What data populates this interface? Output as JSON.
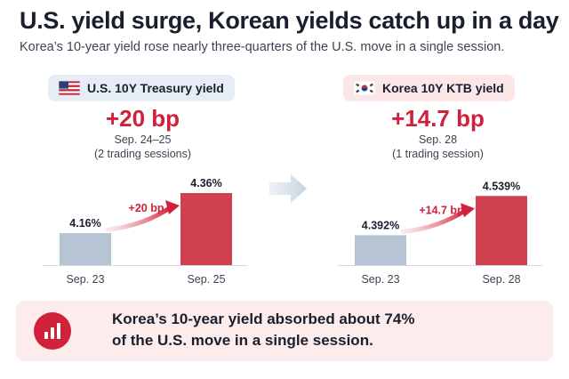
{
  "header": {
    "title": "U.S. yield surge, Korean yields catch up in a day",
    "subtitle": "Korea’s 10-year yield rose nearly three-quarters of the U.S. move in a single session."
  },
  "colors": {
    "accent_red": "#d0213a",
    "bar_before": "#b7c4d3",
    "bar_after": "#d0404f"
  },
  "chart_data": [
    {
      "type": "bar",
      "title": "U.S. 10Y Treasury yield",
      "flag_icon": "us-flag-icon",
      "headline_change": "+20 bp",
      "period": "Sep. 24–25",
      "period_note": "(2 trading sessions)",
      "categories": [
        "Sep. 23",
        "Sep. 25"
      ],
      "values": [
        4.16,
        4.36
      ],
      "value_labels": [
        "4.16%",
        "4.36%"
      ],
      "change_label": "+20 bp",
      "ylabel": "",
      "ylim": [
        4.0,
        4.4
      ]
    },
    {
      "type": "bar",
      "title": "Korea 10Y KTB yield",
      "flag_icon": "korea-flag-icon",
      "headline_change": "+14.7 bp",
      "period": "Sep. 28",
      "period_note": "(1 trading session)",
      "categories": [
        "Sep. 23",
        "Sep. 28"
      ],
      "values": [
        4.392,
        4.539
      ],
      "value_labels": [
        "4.392%",
        "4.539%"
      ],
      "change_label": "+14.7 bp",
      "ylabel": "",
      "ylim": [
        4.28,
        4.58
      ]
    }
  ],
  "callout": {
    "icon": "bar-chart-icon",
    "line1": "Korea’s 10-year yield absorbed about 74%",
    "line2": "of the U.S. move in a single session."
  }
}
